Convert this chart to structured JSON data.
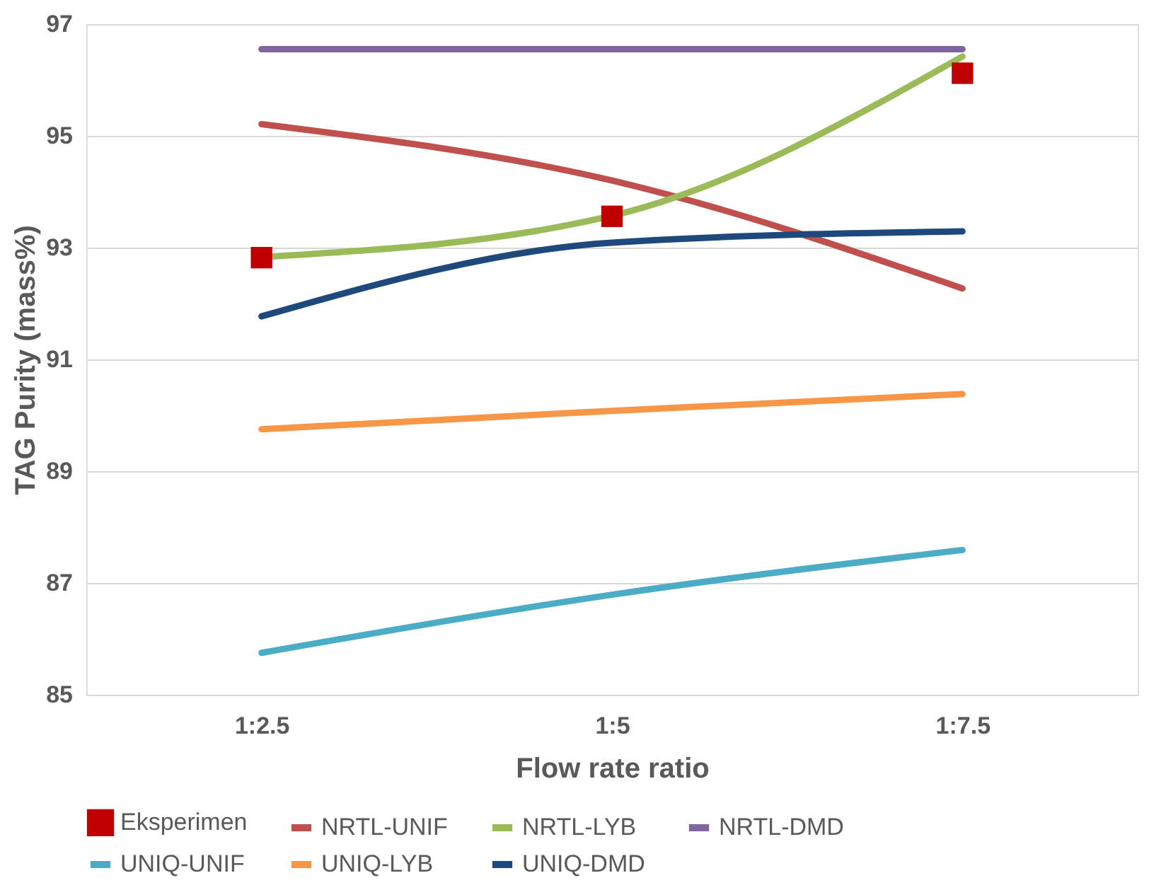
{
  "chart_data": {
    "type": "line",
    "xlabel": "Flow rate ratio",
    "ylabel": "TAG Purity (mass%)",
    "categories": [
      "1:2.5",
      "1:5",
      "1:7.5"
    ],
    "ylim": [
      85,
      97
    ],
    "yticks": [
      85,
      87,
      89,
      91,
      93,
      95,
      97
    ],
    "grid": "y",
    "legend": "bottom",
    "series": [
      {
        "name": "Eksperimen",
        "type": "scatter",
        "marker": "square",
        "color": "#c00000",
        "values": [
          92.82,
          93.56,
          96.12
        ]
      },
      {
        "name": "NRTL-UNIF",
        "color": "#c0504d",
        "values": [
          95.21,
          94.2,
          92.27
        ]
      },
      {
        "name": "NRTL-LYB",
        "color": "#9bbb59",
        "values": [
          92.83,
          93.57,
          96.42
        ]
      },
      {
        "name": "NRTL-DMD",
        "color": "#8064a2",
        "values": [
          96.55,
          96.55,
          96.55
        ]
      },
      {
        "name": "UNIQ-UNIF",
        "color": "#4bacc6",
        "values": [
          85.75,
          86.79,
          87.59
        ]
      },
      {
        "name": "UNIQ-LYB",
        "color": "#f79646",
        "values": [
          89.75,
          90.08,
          90.38
        ]
      },
      {
        "name": "UNIQ-DMD",
        "color": "#1f497d",
        "values": [
          91.77,
          93.09,
          93.29
        ]
      }
    ]
  }
}
